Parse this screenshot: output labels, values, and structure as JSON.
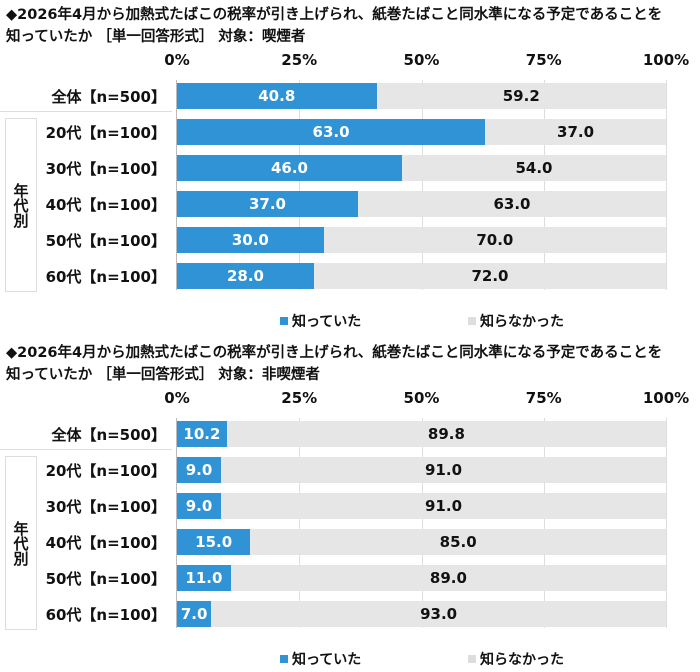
{
  "colors": {
    "known": "#2f93d6",
    "unknown": "#e6e6e6"
  },
  "chart_data": [
    {
      "type": "bar",
      "stacked": true,
      "orientation": "horizontal",
      "title": [
        "◆2026年4月から加熱式たばこの税率が引き上げられ、紙巻たばこと同水準になる予定であることを",
        "知っていたか ［単一回答形式］ 対象：喫煙者"
      ],
      "xticks": [
        "0%",
        "25%",
        "50%",
        "75%",
        "100%"
      ],
      "xlim": [
        0,
        100
      ],
      "categories": [
        "全体【n=500】",
        "20代【n=100】",
        "30代【n=100】",
        "40代【n=100】",
        "50代【n=100】",
        "60代【n=100】"
      ],
      "group_label": "年代別",
      "series": [
        {
          "name": "知っていた",
          "values": [
            40.8,
            63.0,
            46.0,
            37.0,
            30.0,
            28.0
          ]
        },
        {
          "name": "知らなかった",
          "values": [
            59.2,
            37.0,
            54.0,
            63.0,
            70.0,
            72.0
          ]
        }
      ],
      "legend": "bottom"
    },
    {
      "type": "bar",
      "stacked": true,
      "orientation": "horizontal",
      "title": [
        "◆2026年4月から加熱式たばこの税率が引き上げられ、紙巻たばこと同水準になる予定であることを",
        "知っていたか ［単一回答形式］ 対象：非喫煙者"
      ],
      "xticks": [
        "0%",
        "25%",
        "50%",
        "75%",
        "100%"
      ],
      "xlim": [
        0,
        100
      ],
      "categories": [
        "全体【n=500】",
        "20代【n=100】",
        "30代【n=100】",
        "40代【n=100】",
        "50代【n=100】",
        "60代【n=100】"
      ],
      "group_label": "年代別",
      "series": [
        {
          "name": "知っていた",
          "values": [
            10.2,
            9.0,
            9.0,
            15.0,
            11.0,
            7.0
          ]
        },
        {
          "name": "知らなかった",
          "values": [
            89.8,
            91.0,
            91.0,
            85.0,
            89.0,
            93.0
          ]
        }
      ],
      "legend": "bottom"
    }
  ]
}
